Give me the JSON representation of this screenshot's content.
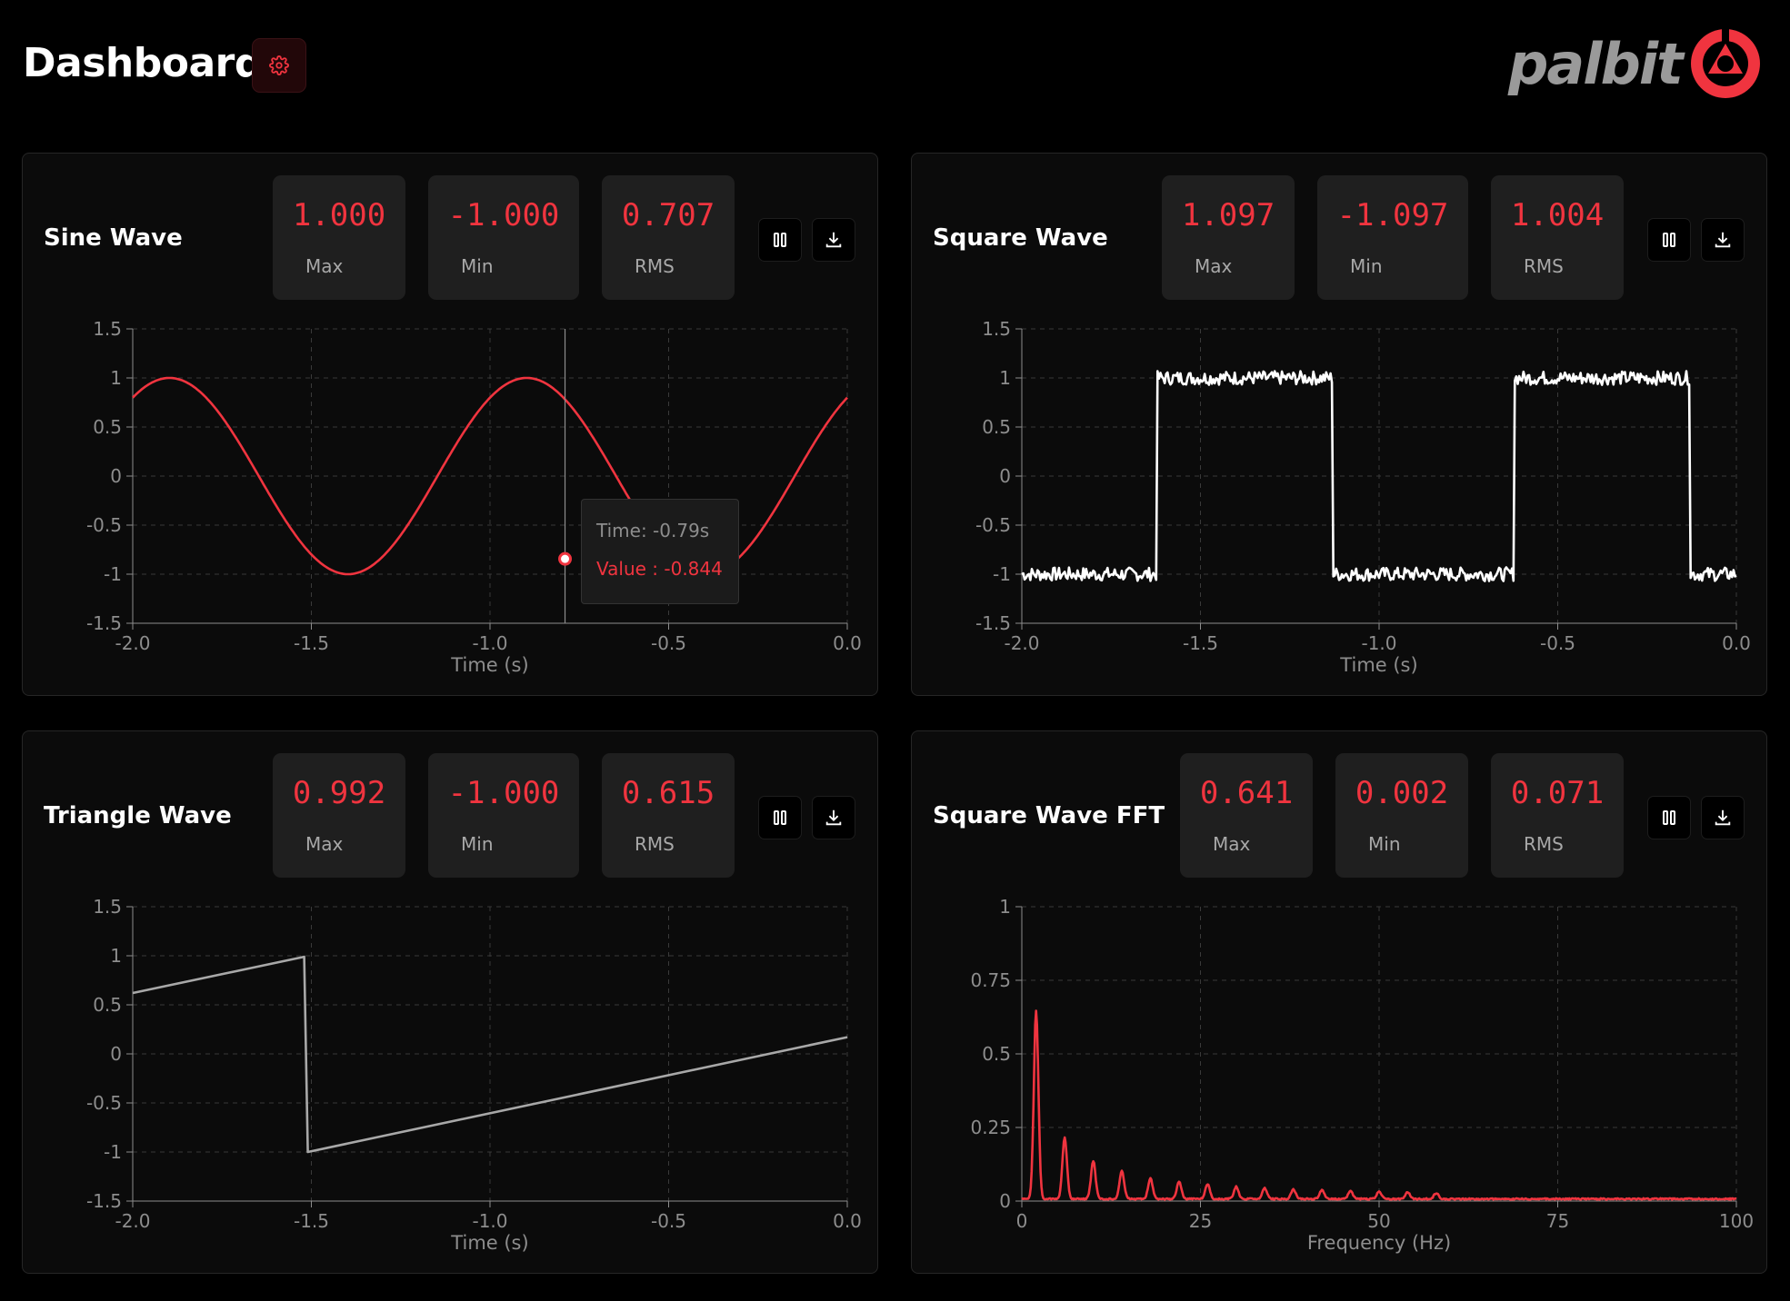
{
  "header": {
    "title": "Dashboard",
    "settings_icon": "gear-icon",
    "logo_text": "palbit"
  },
  "colors": {
    "accent": "#f0343f",
    "panel": "#0b0b0b",
    "card": "#1f1f1f"
  },
  "panels": [
    {
      "title": "Sine Wave",
      "stats": [
        {
          "value": "1.000",
          "label": "Max"
        },
        {
          "value": "-1.000",
          "label": "Min"
        },
        {
          "value": "0.707",
          "label": "RMS"
        }
      ],
      "tooltip": {
        "time": "Time: -0.79s",
        "value": "Value : -0.844"
      }
    },
    {
      "title": "Square Wave",
      "stats": [
        {
          "value": "1.097",
          "label": "Max"
        },
        {
          "value": "-1.097",
          "label": "Min"
        },
        {
          "value": "1.004",
          "label": "RMS"
        }
      ]
    },
    {
      "title": "Triangle Wave",
      "stats": [
        {
          "value": "0.992",
          "label": "Max"
        },
        {
          "value": "-1.000",
          "label": "Min"
        },
        {
          "value": "0.615",
          "label": "RMS"
        }
      ]
    },
    {
      "title": "Square Wave FFT",
      "stats": [
        {
          "value": "0.641",
          "label": "Max"
        },
        {
          "value": "0.002",
          "label": "Min"
        },
        {
          "value": "0.071",
          "label": "RMS"
        }
      ]
    }
  ],
  "chart_data": [
    {
      "type": "line",
      "name": "sine",
      "xlabel": "Time (s)",
      "ylabel": "",
      "xlim": [
        -2,
        0
      ],
      "ylim": [
        -1.5,
        1.5
      ],
      "xticks": [
        "-2.0",
        "-1.5",
        "-1.0",
        "-0.5",
        "0.0"
      ],
      "yticks": [
        "1.5",
        "1",
        "0.5",
        "0",
        "-0.5",
        "-1",
        "-1.5"
      ],
      "grid": true,
      "color": "#f0343f",
      "frequency_hz": 1,
      "phase_deg": -53,
      "amplitude": 1,
      "crosshair_x": -0.79,
      "highlight_point": [
        -0.79,
        -0.844
      ]
    },
    {
      "type": "line",
      "name": "square",
      "xlabel": "Time (s)",
      "ylabel": "",
      "xlim": [
        -2,
        0
      ],
      "ylim": [
        -1.5,
        1.5
      ],
      "xticks": [
        "-2.0",
        "-1.5",
        "-1.0",
        "-0.5",
        "0.0"
      ],
      "yticks": [
        "1.5",
        "1",
        "0.5",
        "0",
        "-0.5",
        "-1",
        "-1.5"
      ],
      "grid": true,
      "color": "#ffffff",
      "period_s": 1.0,
      "noise": 0.07,
      "edges": [
        -1.62,
        -1.13,
        -0.62,
        -0.13
      ],
      "first_level": -1
    },
    {
      "type": "line",
      "name": "triangle",
      "xlabel": "Time (s)",
      "ylabel": "",
      "xlim": [
        -2,
        0
      ],
      "ylim": [
        -1.5,
        1.5
      ],
      "xticks": [
        "-2.0",
        "-1.5",
        "-1.0",
        "-0.5",
        "0.0"
      ],
      "yticks": [
        "1.5",
        "1",
        "0.5",
        "0",
        "-0.5",
        "-1",
        "-1.5"
      ],
      "grid": true,
      "color": "#a8a8a8",
      "points": [
        [
          -2.0,
          0.62
        ],
        [
          -1.52,
          0.99
        ],
        [
          -1.51,
          -1.0
        ],
        [
          0.0,
          0.17
        ]
      ]
    },
    {
      "type": "line",
      "name": "fft",
      "xlabel": "Frequency (Hz)",
      "ylabel": "",
      "xlim": [
        0,
        100
      ],
      "ylim": [
        0,
        1
      ],
      "xticks": [
        "0",
        "25",
        "50",
        "75",
        "100"
      ],
      "yticks": [
        "1",
        "0.75",
        "0.5",
        "0.25",
        "0"
      ],
      "grid": true,
      "color": "#f0343f",
      "peaks": [
        [
          2,
          0.641
        ],
        [
          6,
          0.21
        ],
        [
          10,
          0.13
        ],
        [
          14,
          0.095
        ],
        [
          18,
          0.07
        ],
        [
          22,
          0.058
        ],
        [
          26,
          0.05
        ],
        [
          30,
          0.042
        ],
        [
          34,
          0.037
        ],
        [
          38,
          0.033
        ],
        [
          42,
          0.03
        ],
        [
          46,
          0.027
        ],
        [
          50,
          0.025
        ],
        [
          54,
          0.022
        ],
        [
          58,
          0.02
        ]
      ],
      "floor": 0.012
    }
  ]
}
